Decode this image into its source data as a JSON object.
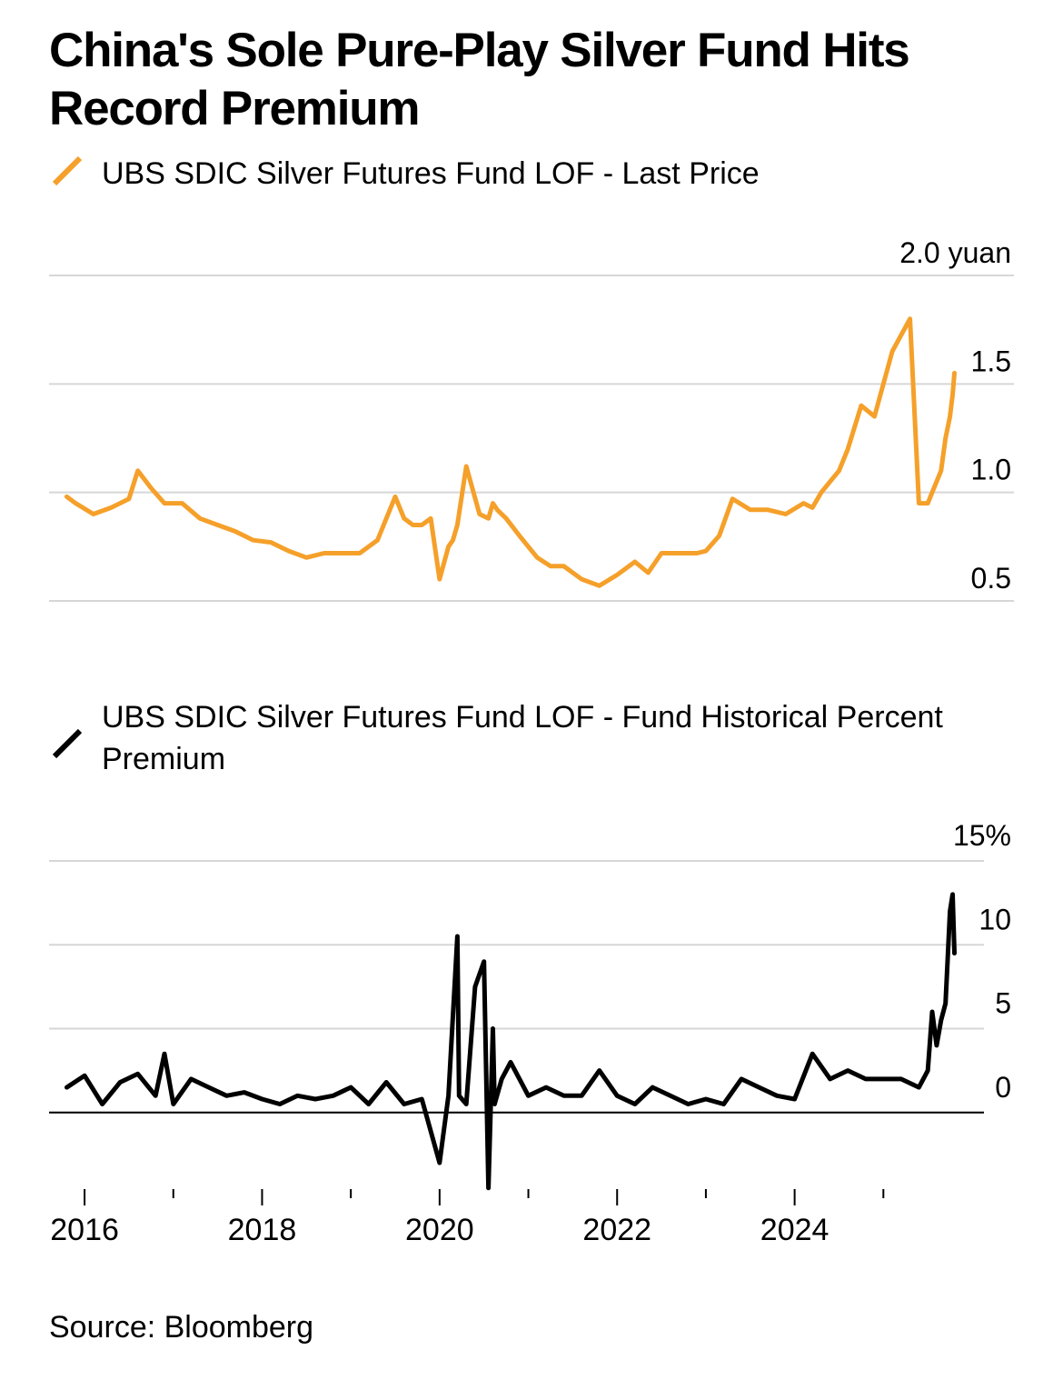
{
  "title": "China's Sole Pure-Play Silver Fund Hits Record Premium",
  "source": "Source: Bloomberg",
  "colors": {
    "price": "#f5a02a",
    "premium": "#000000",
    "grid": "#d6d6d6",
    "text": "#000000"
  },
  "chart_data": [
    {
      "type": "line",
      "series_name": "UBS SDIC Silver Futures Fund LOF - Last Price",
      "unit": "yuan",
      "ylim": [
        0.5,
        2.0
      ],
      "yticks": [
        0.5,
        1.0,
        1.5,
        2.0
      ],
      "ytick_labels": [
        "0.5",
        "1.0",
        "1.5",
        "2.0 yuan"
      ],
      "xlim": [
        2015.6,
        2026.0
      ],
      "x": [
        2015.8,
        2015.9,
        2016.1,
        2016.3,
        2016.5,
        2016.6,
        2016.75,
        2016.9,
        2017.1,
        2017.3,
        2017.5,
        2017.7,
        2017.9,
        2018.1,
        2018.3,
        2018.5,
        2018.7,
        2018.9,
        2019.1,
        2019.3,
        2019.4,
        2019.5,
        2019.6,
        2019.7,
        2019.8,
        2019.9,
        2020.0,
        2020.1,
        2020.15,
        2020.2,
        2020.3,
        2020.45,
        2020.55,
        2020.6,
        2020.65,
        2020.75,
        2020.9,
        2021.0,
        2021.1,
        2021.25,
        2021.4,
        2021.6,
        2021.8,
        2022.0,
        2022.2,
        2022.35,
        2022.5,
        2022.6,
        2022.75,
        2022.9,
        2023.0,
        2023.15,
        2023.3,
        2023.5,
        2023.7,
        2023.9,
        2024.1,
        2024.2,
        2024.3,
        2024.4,
        2024.5,
        2024.6,
        2024.75,
        2024.9,
        2025.1,
        2025.3,
        2025.4,
        2025.5,
        2025.55,
        2025.6,
        2025.65,
        2025.7,
        2025.75,
        2025.78,
        2025.8
      ],
      "y": [
        0.98,
        0.95,
        0.9,
        0.93,
        0.97,
        1.1,
        1.02,
        0.95,
        0.95,
        0.88,
        0.85,
        0.82,
        0.78,
        0.77,
        0.73,
        0.7,
        0.72,
        0.72,
        0.72,
        0.78,
        0.88,
        0.98,
        0.88,
        0.85,
        0.85,
        0.88,
        0.6,
        0.75,
        0.78,
        0.85,
        1.12,
        0.9,
        0.88,
        0.95,
        0.92,
        0.88,
        0.8,
        0.75,
        0.7,
        0.66,
        0.66,
        0.6,
        0.57,
        0.62,
        0.68,
        0.63,
        0.72,
        0.72,
        0.72,
        0.72,
        0.73,
        0.8,
        0.97,
        0.92,
        0.92,
        0.9,
        0.95,
        0.93,
        1.0,
        1.05,
        1.1,
        1.2,
        1.4,
        1.35,
        1.65,
        1.8,
        0.95,
        0.95,
        1.0,
        1.05,
        1.1,
        1.25,
        1.35,
        1.45,
        1.55
      ]
    },
    {
      "type": "line",
      "series_name": "UBS SDIC Silver Futures Fund LOF - Fund Historical Percent Premium",
      "unit": "%",
      "ylim": [
        -5,
        15
      ],
      "yticks": [
        0,
        5,
        10,
        15
      ],
      "ytick_labels": [
        "0",
        "5",
        "10",
        "15%"
      ],
      "xlim": [
        2015.6,
        2026.0
      ],
      "xtick_labels": [
        "2016",
        "2018",
        "2020",
        "2022",
        "2024"
      ],
      "xtick_values": [
        2016,
        2018,
        2020,
        2022,
        2024
      ],
      "minor_ticks": [
        2017,
        2019,
        2021,
        2023,
        2025
      ],
      "x": [
        2015.8,
        2016.0,
        2016.2,
        2016.4,
        2016.6,
        2016.8,
        2016.9,
        2017.0,
        2017.2,
        2017.4,
        2017.6,
        2017.8,
        2018.0,
        2018.2,
        2018.4,
        2018.6,
        2018.8,
        2019.0,
        2019.2,
        2019.4,
        2019.6,
        2019.8,
        2020.0,
        2020.1,
        2020.2,
        2020.22,
        2020.3,
        2020.4,
        2020.5,
        2020.55,
        2020.6,
        2020.62,
        2020.7,
        2020.8,
        2021.0,
        2021.2,
        2021.4,
        2021.6,
        2021.8,
        2022.0,
        2022.2,
        2022.4,
        2022.6,
        2022.8,
        2023.0,
        2023.2,
        2023.4,
        2023.6,
        2023.8,
        2024.0,
        2024.2,
        2024.4,
        2024.6,
        2024.8,
        2025.0,
        2025.2,
        2025.4,
        2025.5,
        2025.55,
        2025.6,
        2025.65,
        2025.7,
        2025.75,
        2025.78,
        2025.8
      ],
      "y": [
        1.5,
        2.2,
        0.5,
        1.8,
        2.3,
        1.0,
        3.5,
        0.5,
        2.0,
        1.5,
        1.0,
        1.2,
        0.8,
        0.5,
        1.0,
        0.8,
        1.0,
        1.5,
        0.5,
        1.8,
        0.5,
        0.8,
        -3.0,
        1.0,
        10.5,
        1.0,
        0.5,
        7.5,
        9.0,
        -4.5,
        5.0,
        0.5,
        2.0,
        3.0,
        1.0,
        1.5,
        1.0,
        1.0,
        2.5,
        1.0,
        0.5,
        1.5,
        1.0,
        0.5,
        0.8,
        0.5,
        2.0,
        1.5,
        1.0,
        0.8,
        3.5,
        2.0,
        2.5,
        2.0,
        2.0,
        2.0,
        1.5,
        2.5,
        6.0,
        4.0,
        5.5,
        6.5,
        12.0,
        13.0,
        9.5
      ]
    }
  ]
}
